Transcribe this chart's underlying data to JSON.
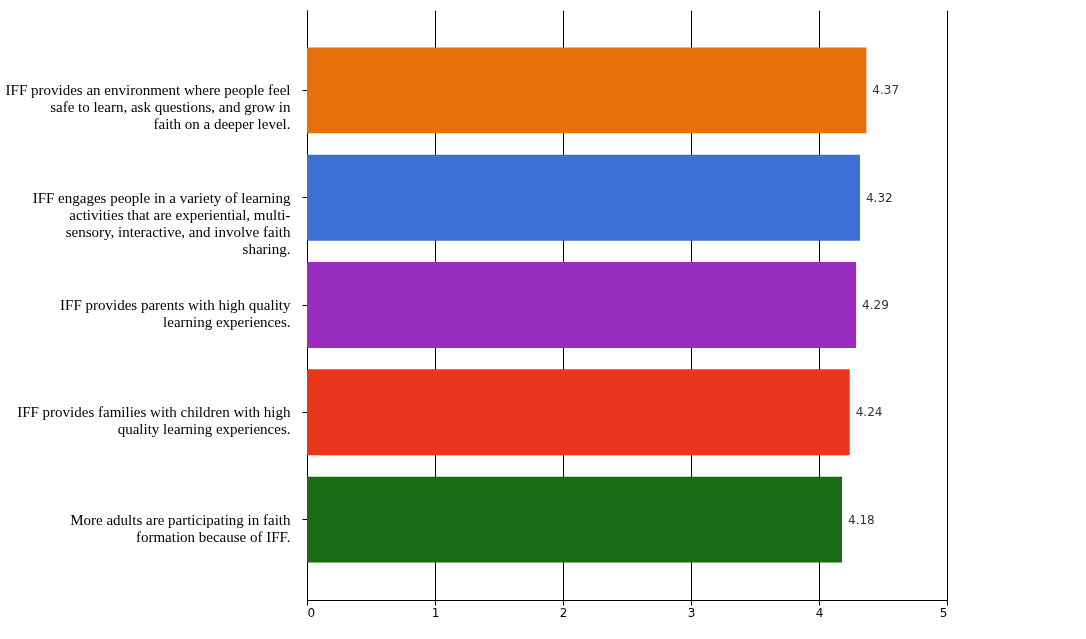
{
  "chart_data": {
    "type": "bar",
    "orientation": "horizontal",
    "categories": [
      "IFF provides an environment where people feel safe to learn, ask questions, and grow in faith on a deeper level.",
      "IFF engages people in a variety of learning activities that are experiential, multi-sensory, interactive, and involve faith sharing.",
      "IFF provides parents with high quality learning experiences.",
      "IFF provides families with children with high quality learning experiences.",
      "More adults are participating in faith formation because of IFF."
    ],
    "values": [
      4.37,
      4.32,
      4.29,
      4.24,
      4.18
    ],
    "colors": [
      "#e8700a",
      "#3d6fd6",
      "#9a2cc0",
      "#e8361c",
      "#1a6b14"
    ],
    "xlim": [
      0,
      5
    ],
    "xticks": [
      0,
      1,
      2,
      3,
      4,
      5
    ],
    "grid": "x",
    "data_labels": true,
    "legend": false
  }
}
